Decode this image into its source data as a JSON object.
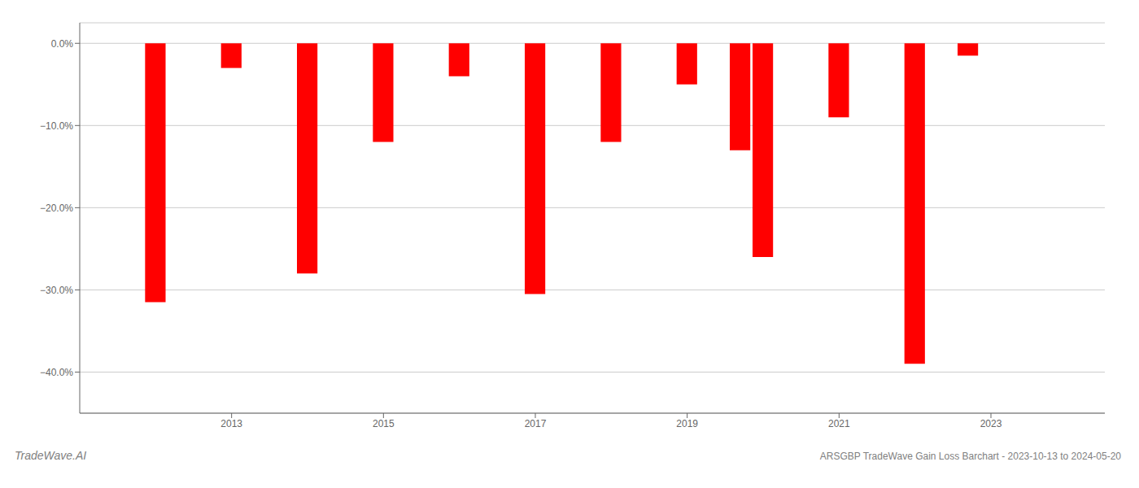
{
  "chart_data": {
    "type": "bar",
    "title": "ARSGBP TradeWave Gain Loss Barchart - 2023-10-13 to 2024-05-20",
    "annotations": [
      "TradeWave.AI"
    ],
    "x": [
      2012,
      2013,
      2014,
      2015,
      2016,
      2017,
      2018,
      2019,
      2019.7,
      2020,
      2021,
      2022,
      2022.7
    ],
    "values": [
      -0.315,
      -0.03,
      -0.28,
      -0.12,
      -0.04,
      -0.305,
      -0.12,
      -0.05,
      -0.13,
      -0.26,
      -0.09,
      -0.39,
      -0.015
    ],
    "color": "#ff0000",
    "xlim": [
      2011.0,
      2024.5
    ],
    "xticks": [
      2013,
      2015,
      2017,
      2019,
      2021,
      2023
    ],
    "ylim": [
      -0.45,
      0.025
    ],
    "yticks": [
      {
        "value": 0.0,
        "label": "0.0%"
      },
      {
        "value": -0.1,
        "label": "−10.0%"
      },
      {
        "value": -0.2,
        "label": "−20.0%"
      },
      {
        "value": -0.3,
        "label": "−30.0%"
      },
      {
        "value": -0.4,
        "label": "−40.0%"
      }
    ],
    "grid": true
  }
}
